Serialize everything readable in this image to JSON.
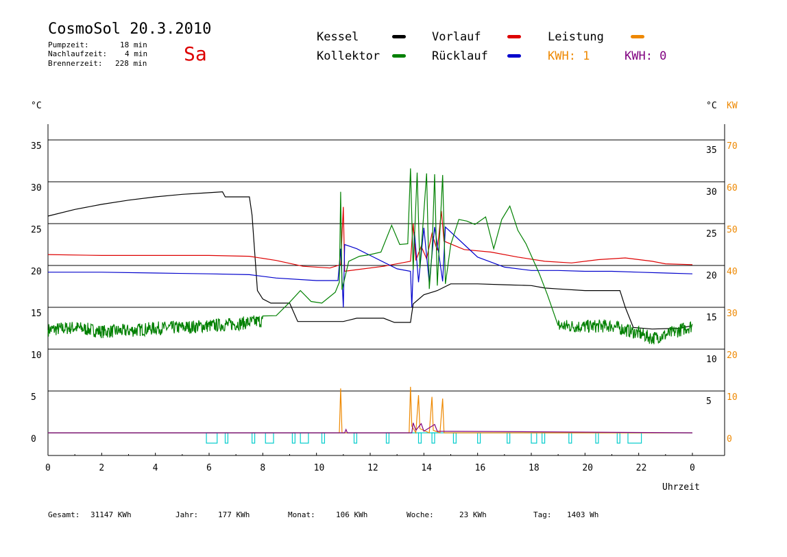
{
  "header": {
    "title": "CosmoSol 20.3.2010",
    "day": "Sa",
    "stats": [
      {
        "label": "Pumpzeit:",
        "value": "18 min"
      },
      {
        "label": "Nachlaufzeit:",
        "value": "4 min"
      },
      {
        "label": "Brennerzeit:",
        "value": "228 min"
      }
    ]
  },
  "legend": {
    "kessel": "Kessel",
    "kollektor": "Kollektor",
    "vorlauf": "Vorlauf",
    "ruecklauf": "Rücklauf",
    "leistung": "Leistung",
    "kwh1": "KWH: 1",
    "kwh0": "KWH: 0"
  },
  "colors": {
    "kessel": "#000000",
    "kollektor": "#008000",
    "vorlauf": "#dd0000",
    "ruecklauf": "#0000cc",
    "leistung": "#ee8800",
    "kwh0": "#800080",
    "pump": "#00cccc"
  },
  "footer": {
    "gesamt_label": "Gesamt:",
    "gesamt_value": "31147 KWh",
    "jahr_label": "Jahr:",
    "jahr_value": "177 KWh",
    "monat_label": "Monat:",
    "monat_value": "106 KWh",
    "woche_label": "Woche:",
    "woche_value": "23 KWh",
    "tag_label": "Tag:",
    "tag_value": "1403 Wh"
  },
  "chart_data": {
    "type": "line",
    "xlabel": "Uhrzeit",
    "ylabel_left": "°C",
    "ylabel_right": "°C",
    "ylabel_right2": "KW",
    "xlim": [
      0,
      24
    ],
    "ylim": [
      -2.7,
      37
    ],
    "grid": true,
    "x_ticks": [
      "0",
      "2",
      "4",
      "6",
      "8",
      "10",
      "12",
      "14",
      "16",
      "18",
      "20",
      "22",
      "0"
    ],
    "y_ticks": [
      0,
      5,
      10,
      15,
      20,
      25,
      30,
      35
    ],
    "kw_ticks": [
      0,
      10,
      20,
      30,
      40,
      50,
      60,
      70
    ],
    "series": [
      {
        "name": "Kessel",
        "color": "#000000",
        "points": [
          [
            0,
            25.9
          ],
          [
            1,
            26.7
          ],
          [
            2,
            27.3
          ],
          [
            3,
            27.8
          ],
          [
            4,
            28.2
          ],
          [
            5,
            28.5
          ],
          [
            6,
            28.7
          ],
          [
            6.5,
            28.8
          ],
          [
            6.6,
            28.2
          ],
          [
            7.5,
            28.2
          ],
          [
            7.6,
            26
          ],
          [
            7.8,
            17
          ],
          [
            8,
            16
          ],
          [
            8.3,
            15.5
          ],
          [
            9,
            15.5
          ],
          [
            9.3,
            13.3
          ],
          [
            11,
            13.3
          ],
          [
            11.5,
            13.7
          ],
          [
            12.5,
            13.7
          ],
          [
            12.9,
            13.2
          ],
          [
            13.5,
            13.2
          ],
          [
            13.6,
            15.4
          ],
          [
            14,
            16.5
          ],
          [
            14.5,
            17
          ],
          [
            15,
            17.8
          ],
          [
            16,
            17.8
          ],
          [
            17,
            17.7
          ],
          [
            18,
            17.6
          ],
          [
            18.5,
            17.3
          ],
          [
            19,
            17.2
          ],
          [
            20,
            17.0
          ],
          [
            21,
            17.0
          ],
          [
            21.3,
            17.0
          ],
          [
            21.5,
            15
          ],
          [
            21.8,
            12.6
          ],
          [
            22.5,
            12.4
          ],
          [
            23.5,
            12.5
          ],
          [
            24,
            12.8
          ]
        ]
      },
      {
        "name": "Vorlauf",
        "color": "#dd0000",
        "points": [
          [
            0,
            21.3
          ],
          [
            2,
            21.2
          ],
          [
            4,
            21.2
          ],
          [
            6,
            21.2
          ],
          [
            7.5,
            21.1
          ],
          [
            8.5,
            20.6
          ],
          [
            9.5,
            19.9
          ],
          [
            10.5,
            19.7
          ],
          [
            10.9,
            20.1
          ],
          [
            11,
            27.0
          ],
          [
            11.05,
            19.3
          ],
          [
            11.5,
            19.5
          ],
          [
            12.5,
            19.9
          ],
          [
            13.5,
            20.5
          ],
          [
            13.6,
            25
          ],
          [
            13.7,
            20.6
          ],
          [
            13.9,
            22.3
          ],
          [
            14.1,
            20.8
          ],
          [
            14.3,
            23.8
          ],
          [
            14.5,
            21.8
          ],
          [
            14.65,
            26.5
          ],
          [
            14.75,
            22.9
          ],
          [
            15.5,
            21.9
          ],
          [
            16.5,
            21.6
          ],
          [
            17.5,
            21.0
          ],
          [
            18.5,
            20.5
          ],
          [
            19.5,
            20.3
          ],
          [
            20.5,
            20.7
          ],
          [
            21.5,
            20.9
          ],
          [
            22.5,
            20.5
          ],
          [
            23,
            20.2
          ],
          [
            24,
            20.1
          ]
        ]
      },
      {
        "name": "Rücklauf",
        "color": "#0000cc",
        "points": [
          [
            0,
            19.2
          ],
          [
            2,
            19.2
          ],
          [
            4,
            19.1
          ],
          [
            6,
            19.0
          ],
          [
            7.5,
            18.9
          ],
          [
            8.5,
            18.5
          ],
          [
            10,
            18.2
          ],
          [
            10.8,
            18.2
          ],
          [
            10.9,
            22
          ],
          [
            11,
            15
          ],
          [
            11.05,
            22.5
          ],
          [
            11.5,
            22
          ],
          [
            12,
            21.2
          ],
          [
            13,
            19.6
          ],
          [
            13.5,
            19.3
          ],
          [
            13.55,
            15
          ],
          [
            13.65,
            24
          ],
          [
            13.8,
            18
          ],
          [
            14,
            24.5
          ],
          [
            14.2,
            17.9
          ],
          [
            14.4,
            24.6
          ],
          [
            14.55,
            21.5
          ],
          [
            14.7,
            18.1
          ],
          [
            14.8,
            24.6
          ],
          [
            15.5,
            22.5
          ],
          [
            16,
            21
          ],
          [
            17,
            19.8
          ],
          [
            18,
            19.4
          ],
          [
            19,
            19.4
          ],
          [
            20,
            19.3
          ],
          [
            21,
            19.3
          ],
          [
            22,
            19.2
          ],
          [
            23,
            19.1
          ],
          [
            24,
            19.0
          ]
        ]
      },
      {
        "name": "Kollektor",
        "color": "#008000",
        "points": [
          [
            0,
            12.3
          ],
          [
            1,
            12.6
          ],
          [
            2,
            12.1
          ],
          [
            3,
            12.2
          ],
          [
            4,
            12.5
          ],
          [
            5,
            12.6
          ],
          [
            6,
            12.8
          ],
          [
            7,
            13.0
          ],
          [
            8,
            13.4
          ],
          [
            8.5,
            14.0
          ],
          [
            9,
            15.6
          ],
          [
            9.4,
            17.0
          ],
          [
            9.8,
            15.7
          ],
          [
            10.2,
            15.5
          ],
          [
            10.7,
            16.8
          ],
          [
            10.85,
            18.0
          ],
          [
            10.9,
            28.8
          ],
          [
            10.95,
            17.1
          ],
          [
            11.2,
            20.5
          ],
          [
            11.6,
            21.1
          ],
          [
            12,
            21.3
          ],
          [
            12.4,
            21.6
          ],
          [
            12.8,
            24.8
          ],
          [
            13.1,
            22.5
          ],
          [
            13.4,
            22.6
          ],
          [
            13.5,
            31.6
          ],
          [
            13.6,
            19.5
          ],
          [
            13.75,
            31.1
          ],
          [
            13.85,
            19.7
          ],
          [
            14.1,
            31.0
          ],
          [
            14.2,
            17.2
          ],
          [
            14.3,
            21.5
          ],
          [
            14.4,
            30.9
          ],
          [
            14.5,
            17.6
          ],
          [
            14.7,
            30.8
          ],
          [
            14.8,
            17.8
          ],
          [
            15,
            22.5
          ],
          [
            15.3,
            25.5
          ],
          [
            15.6,
            25.3
          ],
          [
            15.9,
            24.9
          ],
          [
            16.3,
            25.8
          ],
          [
            16.6,
            22.0
          ],
          [
            16.9,
            25.5
          ],
          [
            17.2,
            27.1
          ],
          [
            17.5,
            24.2
          ],
          [
            17.8,
            22.6
          ],
          [
            18.3,
            19.0
          ],
          [
            18.6,
            16.5
          ],
          [
            19,
            12.8
          ],
          [
            20,
            12.7
          ],
          [
            21,
            12.8
          ],
          [
            21.5,
            12.3
          ],
          [
            22,
            11.9
          ],
          [
            22.5,
            11.3
          ],
          [
            23,
            11.7
          ],
          [
            24,
            12.8
          ]
        ],
        "noisy_ranges": [
          [
            0,
            8.2
          ],
          [
            18.8,
            24
          ]
        ]
      },
      {
        "name": "Leistung",
        "color": "#ee8800",
        "points": [
          [
            0,
            0
          ],
          [
            10.85,
            0
          ],
          [
            10.9,
            5.3
          ],
          [
            10.95,
            0
          ],
          [
            13.45,
            0
          ],
          [
            13.5,
            5.5
          ],
          [
            13.55,
            0.8
          ],
          [
            13.7,
            0
          ],
          [
            13.8,
            4.5
          ],
          [
            13.85,
            0.5
          ],
          [
            14.2,
            0
          ],
          [
            14.3,
            4.3
          ],
          [
            14.35,
            0.3
          ],
          [
            14.6,
            0
          ],
          [
            14.7,
            4.1
          ],
          [
            14.75,
            0
          ],
          [
            24,
            0
          ]
        ]
      },
      {
        "name": "KWH 0",
        "color": "#800080",
        "points": [
          [
            0,
            0
          ],
          [
            11.05,
            0
          ],
          [
            11.1,
            0.4
          ],
          [
            11.15,
            0
          ],
          [
            13.55,
            0
          ],
          [
            13.6,
            1.2
          ],
          [
            13.7,
            0.3
          ],
          [
            13.9,
            1.1
          ],
          [
            14,
            0.2
          ],
          [
            14.4,
            1.0
          ],
          [
            14.5,
            0.2
          ],
          [
            24,
            0
          ]
        ]
      }
    ],
    "pump_blocks": [
      [
        5.9,
        6.3
      ],
      [
        6.6,
        6.7
      ],
      [
        7.6,
        7.7
      ],
      [
        8.1,
        8.4
      ],
      [
        9.1,
        9.2
      ],
      [
        9.4,
        9.7
      ],
      [
        10.2,
        10.3
      ],
      [
        11.4,
        11.5
      ],
      [
        12.6,
        12.7
      ],
      [
        13.8,
        13.9
      ],
      [
        14.3,
        14.4
      ],
      [
        15.1,
        15.2
      ],
      [
        16.0,
        16.1
      ],
      [
        17.1,
        17.2
      ],
      [
        18.0,
        18.2
      ],
      [
        18.4,
        18.5
      ],
      [
        19.4,
        19.5
      ],
      [
        20.4,
        20.5
      ],
      [
        21.2,
        21.3
      ],
      [
        21.6,
        22.1
      ]
    ]
  }
}
